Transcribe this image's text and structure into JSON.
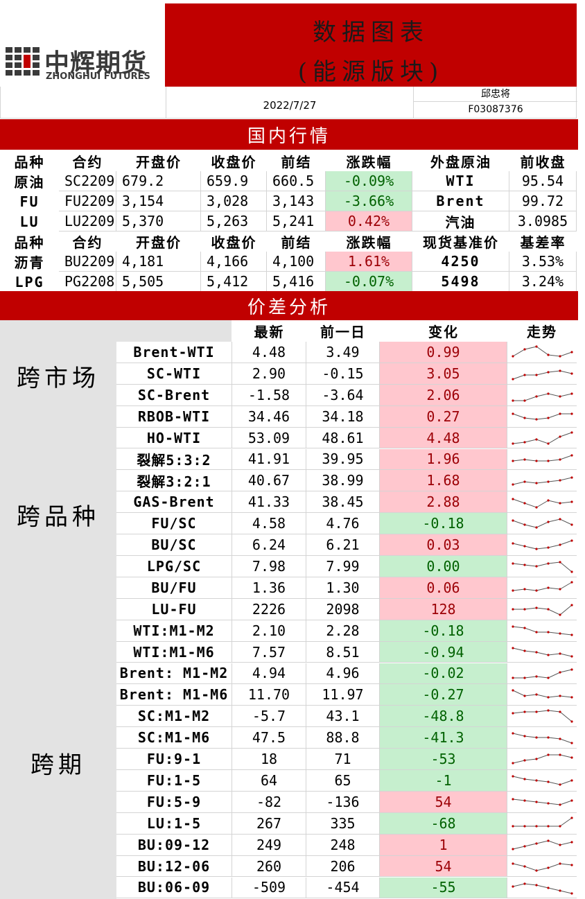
{
  "header": {
    "logo_cn": "中辉期货",
    "logo_en": "ZHONGHUI FUTURES",
    "title_line1": "数据图表",
    "title_line2": "(能源版块)",
    "date": "2022/7/27",
    "author": "邱忠将",
    "license": "F03087376"
  },
  "domestic": {
    "title": "国内行情",
    "rows": [
      [
        "品种",
        "合约",
        "开盘价",
        "收盘价",
        "前结",
        "涨跌幅",
        "外盘原油",
        "前收盘"
      ],
      [
        "原油",
        "SC2209",
        "679.2",
        "659.9",
        "660.5",
        "-0.09%",
        "WTI",
        "95.54"
      ],
      [
        "FU",
        "FU2209",
        "3,154",
        "3,028",
        "3,143",
        "-3.66%",
        "Brent",
        "99.72"
      ],
      [
        "LU",
        "LU2209",
        "5,370",
        "5,263",
        "5,241",
        "0.42%",
        "汽油",
        "3.0985"
      ],
      [
        "品种",
        "合约",
        "开盘价",
        "收盘价",
        "前结",
        "涨跌幅",
        "现货基准价",
        "基差率"
      ],
      [
        "沥青",
        "BU2209",
        "4,181",
        "4,166",
        "4,100",
        "1.61%",
        "4250",
        "3.53%"
      ],
      [
        "LPG",
        "PG2208",
        "5,505",
        "5,412",
        "5,416",
        "-0.07%",
        "5498",
        "3.24%"
      ]
    ]
  },
  "spread": {
    "title": "价差分析",
    "header": [
      "最新",
      "前一日",
      "变化",
      "走势"
    ],
    "groups": [
      "跨市场",
      "跨品种",
      "跨期"
    ],
    "rows": [
      [
        "Brent-WTI",
        "4.48",
        "3.49",
        "0.99"
      ],
      [
        "SC-WTI",
        "2.90",
        "-0.15",
        "3.05"
      ],
      [
        "SC-Brent",
        "-1.58",
        "-3.64",
        "2.06"
      ],
      [
        "RBOB-WTI",
        "34.46",
        "34.18",
        "0.27"
      ],
      [
        "HO-WTI",
        "53.09",
        "48.61",
        "4.48"
      ],
      [
        "裂解5:3:2",
        "41.91",
        "39.95",
        "1.96"
      ],
      [
        "裂解3:2:1",
        "40.67",
        "38.99",
        "1.68"
      ],
      [
        "GAS-Brent",
        "41.33",
        "38.45",
        "2.88"
      ],
      [
        "FU/SC",
        "4.58",
        "4.76",
        "-0.18"
      ],
      [
        "BU/SC",
        "6.24",
        "6.21",
        "0.03"
      ],
      [
        "LPG/SC",
        "7.98",
        "7.99",
        "0.00"
      ],
      [
        "BU/FU",
        "1.36",
        "1.30",
        "0.06"
      ],
      [
        "LU-FU",
        "2226",
        "2098",
        "128"
      ],
      [
        "WTI:M1-M2",
        "2.10",
        "2.28",
        "-0.18"
      ],
      [
        "WTI:M1-M6",
        "7.57",
        "8.51",
        "-0.94"
      ],
      [
        "Brent: M1-M2",
        "4.94",
        "4.96",
        "-0.02"
      ],
      [
        "Brent: M1-M6",
        "11.70",
        "11.97",
        "-0.27"
      ],
      [
        "SC:M1-M2",
        "-5.7",
        "43.1",
        "-48.8"
      ],
      [
        "SC:M1-M6",
        "47.5",
        "88.8",
        "-41.3"
      ],
      [
        "FU:9-1",
        "18",
        "71",
        "-53"
      ],
      [
        "FU:1-5",
        "64",
        "65",
        "-1"
      ],
      [
        "FU:5-9",
        "-82",
        "-136",
        "54"
      ],
      [
        "LU:1-5",
        "267",
        "335",
        "-68"
      ],
      [
        "BU:09-12",
        "249",
        "248",
        "1"
      ],
      [
        "BU:12-06",
        "260",
        "206",
        "54"
      ],
      [
        "BU:06-09",
        "-509",
        "-454",
        "-55"
      ]
    ]
  }
}
